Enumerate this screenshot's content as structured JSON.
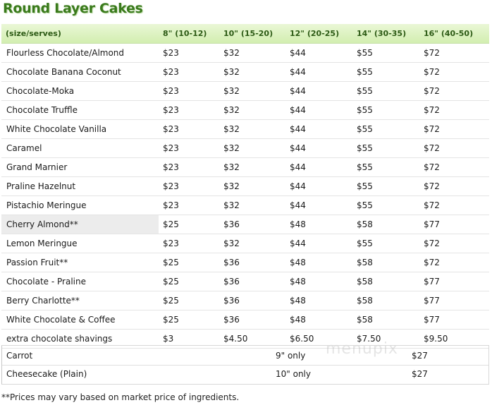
{
  "title": "Round Layer Cakes",
  "headers": [
    "(size/serves)",
    "8\" (10-12)",
    "10\" (15-20)",
    "12\" (20-25)",
    "14\" (30-35)",
    "16\" (40-50)"
  ],
  "rows": [
    {
      "name": "Flourless Chocolate/Almond",
      "prices": [
        "$23",
        "$32",
        "$44",
        "$55",
        "$72"
      ]
    },
    {
      "name": "Chocolate Banana Coconut",
      "prices": [
        "$23",
        "$32",
        "$44",
        "$55",
        "$72"
      ]
    },
    {
      "name": "Chocolate-Moka",
      "prices": [
        "$23",
        "$32",
        "$44",
        "$55",
        "$72"
      ]
    },
    {
      "name": "Chocolate Truffle",
      "prices": [
        "$23",
        "$32",
        "$44",
        "$55",
        "$72"
      ]
    },
    {
      "name": "White Chocolate Vanilla",
      "prices": [
        "$23",
        "$32",
        "$44",
        "$55",
        "$72"
      ]
    },
    {
      "name": "Caramel",
      "prices": [
        "$23",
        "$32",
        "$44",
        "$55",
        "$72"
      ]
    },
    {
      "name": "Grand Marnier",
      "prices": [
        "$23",
        "$32",
        "$44",
        "$55",
        "$72"
      ]
    },
    {
      "name": "Praline Hazelnut",
      "prices": [
        "$23",
        "$32",
        "$44",
        "$55",
        "$72"
      ]
    },
    {
      "name": "Pistachio Meringue",
      "prices": [
        "$23",
        "$32",
        "$44",
        "$55",
        "$72"
      ]
    },
    {
      "name": "Cherry Almond**",
      "prices": [
        "$25",
        "$36",
        "$48",
        "$58",
        "$77"
      ]
    },
    {
      "name": "Lemon Meringue",
      "prices": [
        "$23",
        "$32",
        "$44",
        "$55",
        "$72"
      ]
    },
    {
      "name": "Passion Fruit**",
      "prices": [
        "$25",
        "$36",
        "$48",
        "$58",
        "$72"
      ]
    },
    {
      "name": "Chocolate - Praline",
      "prices": [
        "$25",
        "$36",
        "$48",
        "$58",
        "$77"
      ]
    },
    {
      "name": "Berry Charlotte**",
      "prices": [
        "$25",
        "$36",
        "$48",
        "$58",
        "$77"
      ]
    },
    {
      "name": "White Chocolate & Coffee",
      "prices": [
        "$25",
        "$36",
        "$48",
        "$58",
        "$77"
      ]
    },
    {
      "name": "extra chocolate shavings",
      "prices": [
        "$3",
        "$4.50",
        "$6.50",
        "$7.50",
        "$9.50"
      ]
    }
  ],
  "highlighted_row": "Cherry Almond**",
  "other_cakes": [
    {
      "name": "Carrot",
      "size": "9\" only",
      "price": "$27"
    },
    {
      "name": "Cheesecake (Plain)",
      "size": "10\" only",
      "price": "$27"
    }
  ],
  "watermark": "menupix",
  "footnote": "**Prices may vary based on market price of ingredients.",
  "colors": {
    "title": "#3a7a1c",
    "header_bg": "#d2eeb0",
    "highlight": "#ececec"
  }
}
